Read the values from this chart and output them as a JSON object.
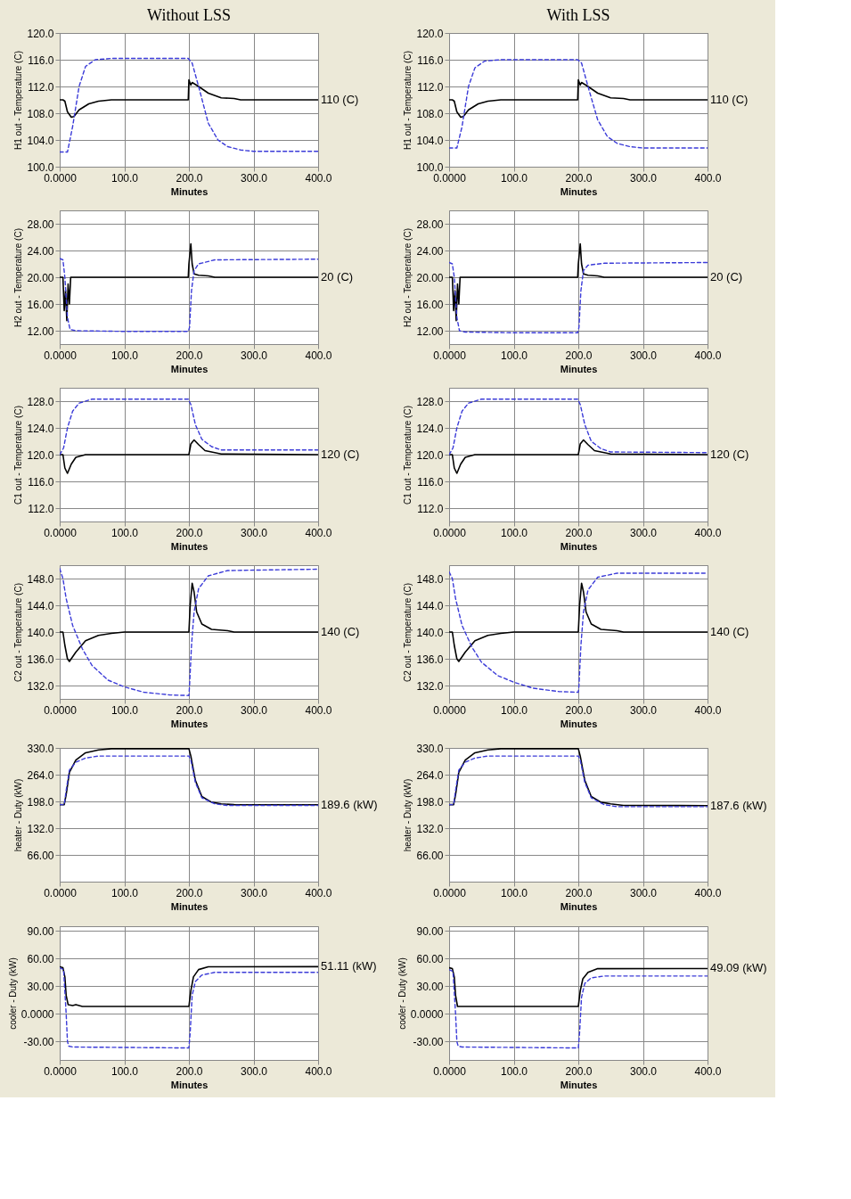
{
  "chart_data": [
    {
      "type": "line",
      "title": "Without LSS",
      "xlabel": "Minutes",
      "ylabel": "H1 out - Temperature (C)",
      "xlim": [
        0,
        400
      ],
      "ylim": [
        100,
        120
      ],
      "grid": true,
      "xticks": [
        {
          "value": 0,
          "label": "0.0000"
        },
        {
          "value": 100,
          "label": "100.0"
        },
        {
          "value": 200,
          "label": "200.0"
        },
        {
          "value": 300,
          "label": "300.0"
        },
        {
          "value": 400,
          "label": "400.0"
        }
      ],
      "yticks": [
        {
          "value": 100,
          "label": "100.0"
        },
        {
          "value": 104,
          "label": "104.0"
        },
        {
          "value": 108,
          "label": "108.0"
        },
        {
          "value": 112,
          "label": "112.0"
        },
        {
          "value": 116,
          "label": "116.0"
        },
        {
          "value": 120,
          "label": "120.0"
        }
      ],
      "annotations": [
        "110 (C)"
      ],
      "series": [
        {
          "color": "#000000",
          "line_style": "solid",
          "x": [
            0,
            5,
            8,
            12,
            18,
            22,
            30,
            45,
            60,
            80,
            199,
            200,
            203,
            205,
            215,
            230,
            250,
            270,
            280,
            400
          ],
          "values": [
            110,
            110,
            109.8,
            108.2,
            107.4,
            107.5,
            108.5,
            109.4,
            109.8,
            110,
            110,
            113,
            112.2,
            112.6,
            112,
            111,
            110.3,
            110.2,
            110,
            110
          ]
        },
        {
          "color": "#3b3bd8",
          "line_style": "dashed",
          "x": [
            0,
            12,
            20,
            30,
            40,
            55,
            80,
            199,
            205,
            215,
            230,
            245,
            260,
            280,
            300,
            400
          ],
          "values": [
            102.2,
            102.2,
            106,
            112,
            115,
            116,
            116.2,
            116.2,
            115.5,
            112,
            106.5,
            104,
            103,
            102.5,
            102.3,
            102.3
          ]
        }
      ]
    },
    {
      "type": "line",
      "title": "With LSS",
      "xlabel": "Minutes",
      "ylabel": "H1 out - Temperature (C)",
      "xlim": [
        0,
        400
      ],
      "ylim": [
        100,
        120
      ],
      "grid": true,
      "xticks": [
        {
          "value": 0,
          "label": "0.0000"
        },
        {
          "value": 100,
          "label": "100.0"
        },
        {
          "value": 200,
          "label": "200.0"
        },
        {
          "value": 300,
          "label": "300.0"
        },
        {
          "value": 400,
          "label": "400.0"
        }
      ],
      "yticks": [
        {
          "value": 100,
          "label": "100.0"
        },
        {
          "value": 104,
          "label": "104.0"
        },
        {
          "value": 108,
          "label": "108.0"
        },
        {
          "value": 112,
          "label": "112.0"
        },
        {
          "value": 116,
          "label": "116.0"
        },
        {
          "value": 120,
          "label": "120.0"
        }
      ],
      "annotations": [
        "110 (C)"
      ],
      "series": [
        {
          "color": "#000000",
          "line_style": "solid",
          "x": [
            0,
            5,
            8,
            12,
            18,
            22,
            30,
            45,
            60,
            80,
            199,
            200,
            203,
            205,
            215,
            230,
            250,
            270,
            280,
            400
          ],
          "values": [
            110,
            110,
            109.8,
            108.2,
            107.4,
            107.5,
            108.5,
            109.4,
            109.8,
            110,
            110,
            113,
            112.2,
            112.6,
            112,
            111,
            110.3,
            110.2,
            110,
            110
          ]
        },
        {
          "color": "#3b3bd8",
          "line_style": "dashed",
          "x": [
            0,
            12,
            20,
            30,
            40,
            55,
            80,
            199,
            205,
            215,
            230,
            245,
            260,
            280,
            300,
            400
          ],
          "values": [
            102.8,
            102.8,
            106,
            112,
            114.8,
            115.8,
            116,
            116,
            115.5,
            112,
            107,
            104.5,
            103.5,
            103,
            102.8,
            102.8
          ]
        }
      ]
    },
    {
      "type": "line",
      "xlabel": "Minutes",
      "ylabel": "H2 out - Temperature (C)",
      "xlim": [
        0,
        400
      ],
      "ylim": [
        10,
        30
      ],
      "grid": true,
      "xticks": [
        {
          "value": 0,
          "label": "0.0000"
        },
        {
          "value": 100,
          "label": "100.0"
        },
        {
          "value": 200,
          "label": "200.0"
        },
        {
          "value": 300,
          "label": "300.0"
        },
        {
          "value": 400,
          "label": "400.0"
        }
      ],
      "yticks": [
        {
          "value": 12,
          "label": "12.00"
        },
        {
          "value": 16,
          "label": "16.00"
        },
        {
          "value": 20,
          "label": "20.00"
        },
        {
          "value": 24,
          "label": "24.00"
        },
        {
          "value": 28,
          "label": "28.00"
        }
      ],
      "annotations": [
        "20 (C)"
      ],
      "series": [
        {
          "color": "#000000",
          "line_style": "solid",
          "x": [
            0,
            5,
            7,
            9,
            11,
            13,
            15,
            17,
            20,
            199,
            200,
            203,
            205,
            208,
            215,
            230,
            240,
            400
          ],
          "values": [
            20,
            20,
            15,
            18,
            13.5,
            19,
            16,
            20,
            20,
            20,
            22,
            25,
            22,
            20.5,
            20.3,
            20.2,
            20,
            20
          ]
        },
        {
          "color": "#3b3bd8",
          "line_style": "dashed",
          "x": [
            0,
            5,
            8,
            12,
            16,
            25,
            100,
            199,
            201,
            204,
            208,
            215,
            240,
            400
          ],
          "values": [
            22.8,
            22.6,
            20,
            14,
            12.2,
            12,
            11.9,
            11.9,
            12.5,
            18,
            21,
            22,
            22.6,
            22.7
          ]
        }
      ]
    },
    {
      "type": "line",
      "xlabel": "Minutes",
      "ylabel": "H2 out - Temperature (C)",
      "xlim": [
        0,
        400
      ],
      "ylim": [
        10,
        30
      ],
      "grid": true,
      "xticks": [
        {
          "value": 0,
          "label": "0.0000"
        },
        {
          "value": 100,
          "label": "100.0"
        },
        {
          "value": 200,
          "label": "200.0"
        },
        {
          "value": 300,
          "label": "300.0"
        },
        {
          "value": 400,
          "label": "400.0"
        }
      ],
      "yticks": [
        {
          "value": 12,
          "label": "12.00"
        },
        {
          "value": 16,
          "label": "16.00"
        },
        {
          "value": 20,
          "label": "20.00"
        },
        {
          "value": 24,
          "label": "24.00"
        },
        {
          "value": 28,
          "label": "28.00"
        }
      ],
      "annotations": [
        "20 (C)"
      ],
      "series": [
        {
          "color": "#000000",
          "line_style": "solid",
          "x": [
            0,
            5,
            7,
            9,
            11,
            13,
            15,
            17,
            20,
            199,
            200,
            203,
            205,
            208,
            215,
            230,
            240,
            400
          ],
          "values": [
            20,
            20,
            15,
            18,
            13.5,
            19,
            16,
            20,
            20,
            20,
            22,
            25,
            22,
            20.5,
            20.3,
            20.2,
            20,
            20
          ]
        },
        {
          "color": "#3b3bd8",
          "line_style": "dashed",
          "x": [
            0,
            5,
            8,
            12,
            16,
            25,
            100,
            199,
            201,
            204,
            208,
            215,
            240,
            400
          ],
          "values": [
            22.2,
            22,
            20,
            14,
            12,
            11.8,
            11.7,
            11.7,
            12.5,
            18,
            21,
            21.8,
            22.1,
            22.2
          ]
        }
      ]
    },
    {
      "type": "line",
      "xlabel": "Minutes",
      "ylabel": "C1 out - Temperature (C)",
      "xlim": [
        0,
        400
      ],
      "ylim": [
        110,
        130
      ],
      "grid": true,
      "xticks": [
        {
          "value": 0,
          "label": "0.0000"
        },
        {
          "value": 100,
          "label": "100.0"
        },
        {
          "value": 200,
          "label": "200.0"
        },
        {
          "value": 300,
          "label": "300.0"
        },
        {
          "value": 400,
          "label": "400.0"
        }
      ],
      "yticks": [
        {
          "value": 112,
          "label": "112.0"
        },
        {
          "value": 116,
          "label": "116.0"
        },
        {
          "value": 120,
          "label": "120.0"
        },
        {
          "value": 124,
          "label": "124.0"
        },
        {
          "value": 128,
          "label": "128.0"
        }
      ],
      "annotations": [
        "120 (C)"
      ],
      "series": [
        {
          "color": "#000000",
          "line_style": "solid",
          "x": [
            0,
            5,
            8,
            12,
            18,
            25,
            40,
            200,
            203,
            208,
            215,
            225,
            240,
            250,
            400
          ],
          "values": [
            120,
            120,
            118,
            117.2,
            118.6,
            119.6,
            120,
            120,
            121.6,
            122.2,
            121.5,
            120.6,
            120.3,
            120.1,
            120
          ]
        },
        {
          "color": "#3b3bd8",
          "line_style": "dashed",
          "x": [
            0,
            6,
            12,
            20,
            30,
            50,
            199,
            203,
            210,
            220,
            235,
            250,
            400
          ],
          "values": [
            120,
            121,
            124,
            126.5,
            127.7,
            128.3,
            128.3,
            127.5,
            124.5,
            122.3,
            121.2,
            120.7,
            120.7
          ]
        }
      ]
    },
    {
      "type": "line",
      "xlabel": "Minutes",
      "ylabel": "C1 out - Temperature (C)",
      "xlim": [
        0,
        400
      ],
      "ylim": [
        110,
        130
      ],
      "grid": true,
      "xticks": [
        {
          "value": 0,
          "label": "0.0000"
        },
        {
          "value": 100,
          "label": "100.0"
        },
        {
          "value": 200,
          "label": "200.0"
        },
        {
          "value": 300,
          "label": "300.0"
        },
        {
          "value": 400,
          "label": "400.0"
        }
      ],
      "yticks": [
        {
          "value": 112,
          "label": "112.0"
        },
        {
          "value": 116,
          "label": "116.0"
        },
        {
          "value": 120,
          "label": "120.0"
        },
        {
          "value": 124,
          "label": "124.0"
        },
        {
          "value": 128,
          "label": "128.0"
        }
      ],
      "annotations": [
        "120 (C)"
      ],
      "series": [
        {
          "color": "#000000",
          "line_style": "solid",
          "x": [
            0,
            5,
            8,
            12,
            18,
            25,
            40,
            200,
            203,
            208,
            215,
            225,
            240,
            250,
            400
          ],
          "values": [
            120,
            120,
            118,
            117.2,
            118.6,
            119.6,
            120,
            120,
            121.6,
            122.2,
            121.5,
            120.6,
            120.3,
            120.1,
            120
          ]
        },
        {
          "color": "#3b3bd8",
          "line_style": "dashed",
          "x": [
            0,
            6,
            12,
            20,
            30,
            50,
            199,
            203,
            210,
            220,
            235,
            250,
            400
          ],
          "values": [
            120,
            121,
            124,
            126.5,
            127.7,
            128.3,
            128.3,
            127.5,
            124.5,
            122,
            120.9,
            120.4,
            120.3
          ]
        }
      ]
    },
    {
      "type": "line",
      "xlabel": "Minutes",
      "ylabel": "C2 out - Temperature (C)",
      "xlim": [
        0,
        400
      ],
      "ylim": [
        130,
        150
      ],
      "grid": true,
      "xticks": [
        {
          "value": 0,
          "label": "0.0000"
        },
        {
          "value": 100,
          "label": "100.0"
        },
        {
          "value": 200,
          "label": "200.0"
        },
        {
          "value": 300,
          "label": "300.0"
        },
        {
          "value": 400,
          "label": "400.0"
        }
      ],
      "yticks": [
        {
          "value": 132,
          "label": "132.0"
        },
        {
          "value": 136,
          "label": "136.0"
        },
        {
          "value": 140,
          "label": "140.0"
        },
        {
          "value": 144,
          "label": "144.0"
        },
        {
          "value": 148,
          "label": "148.0"
        }
      ],
      "annotations": [
        "140 (C)"
      ],
      "series": [
        {
          "color": "#000000",
          "line_style": "solid",
          "x": [
            0,
            5,
            8,
            12,
            15,
            25,
            40,
            60,
            80,
            100,
            200,
            202,
            205,
            208,
            212,
            220,
            235,
            260,
            270,
            400
          ],
          "values": [
            140,
            140,
            138,
            136,
            135.6,
            137,
            138.7,
            139.5,
            139.8,
            140,
            140,
            144,
            147.3,
            146,
            143,
            141.2,
            140.4,
            140.2,
            140,
            140
          ]
        },
        {
          "color": "#3b3bd8",
          "line_style": "dashed",
          "x": [
            0,
            5,
            10,
            20,
            35,
            50,
            75,
            100,
            130,
            170,
            200,
            201,
            204,
            208,
            215,
            230,
            260,
            400
          ],
          "values": [
            149.5,
            148,
            145,
            141,
            137.5,
            135,
            132.8,
            131.8,
            131,
            130.6,
            130.5,
            132,
            138,
            143,
            146.5,
            148.4,
            149.2,
            149.4
          ]
        }
      ]
    },
    {
      "type": "line",
      "xlabel": "Minutes",
      "ylabel": "C2 out - Temperature (C)",
      "xlim": [
        0,
        400
      ],
      "ylim": [
        130,
        150
      ],
      "grid": true,
      "xticks": [
        {
          "value": 0,
          "label": "0.0000"
        },
        {
          "value": 100,
          "label": "100.0"
        },
        {
          "value": 200,
          "label": "200.0"
        },
        {
          "value": 300,
          "label": "300.0"
        },
        {
          "value": 400,
          "label": "400.0"
        }
      ],
      "yticks": [
        {
          "value": 132,
          "label": "132.0"
        },
        {
          "value": 136,
          "label": "136.0"
        },
        {
          "value": 140,
          "label": "140.0"
        },
        {
          "value": 144,
          "label": "144.0"
        },
        {
          "value": 148,
          "label": "148.0"
        }
      ],
      "annotations": [
        "140 (C)"
      ],
      "series": [
        {
          "color": "#000000",
          "line_style": "solid",
          "x": [
            0,
            5,
            8,
            12,
            15,
            25,
            40,
            60,
            80,
            100,
            200,
            202,
            205,
            208,
            212,
            220,
            235,
            260,
            270,
            400
          ],
          "values": [
            140,
            140,
            138,
            136,
            135.6,
            137,
            138.7,
            139.5,
            139.8,
            140,
            140,
            144,
            147.3,
            146,
            143,
            141.2,
            140.4,
            140.2,
            140,
            140
          ]
        },
        {
          "color": "#3b3bd8",
          "line_style": "dashed",
          "x": [
            0,
            5,
            10,
            20,
            35,
            50,
            75,
            100,
            130,
            170,
            200,
            201,
            204,
            208,
            215,
            230,
            260,
            400
          ],
          "values": [
            149,
            148,
            145,
            141,
            137.8,
            135.5,
            133.5,
            132.5,
            131.6,
            131.1,
            131,
            132,
            138,
            143,
            146.3,
            148.2,
            148.8,
            148.8
          ]
        }
      ]
    },
    {
      "type": "line",
      "xlabel": "Minutes",
      "ylabel": "heater - Duty (kW)",
      "xlim": [
        0,
        400
      ],
      "ylim": [
        0,
        330
      ],
      "grid": true,
      "xticks": [
        {
          "value": 0,
          "label": "0.0000"
        },
        {
          "value": 100,
          "label": "100.0"
        },
        {
          "value": 200,
          "label": "200.0"
        },
        {
          "value": 300,
          "label": "300.0"
        },
        {
          "value": 400,
          "label": "400.0"
        }
      ],
      "yticks": [
        {
          "value": 66,
          "label": "66.00"
        },
        {
          "value": 132,
          "label": "132.0"
        },
        {
          "value": 198,
          "label": "198.0"
        },
        {
          "value": 264,
          "label": "264.0"
        },
        {
          "value": 330,
          "label": "330.0"
        }
      ],
      "annotations": [
        "189.6 (kW)"
      ],
      "series": [
        {
          "color": "#000000",
          "line_style": "solid",
          "x": [
            0,
            7,
            10,
            15,
            25,
            40,
            60,
            80,
            200,
            203,
            210,
            220,
            235,
            250,
            270,
            400
          ],
          "values": [
            190,
            190,
            215,
            270,
            300,
            318,
            325,
            328,
            328,
            310,
            250,
            210,
            196,
            192,
            190,
            189.6
          ]
        },
        {
          "color": "#3b3bd8",
          "line_style": "dashed",
          "x": [
            0,
            7,
            10,
            15,
            25,
            40,
            60,
            200,
            203,
            210,
            220,
            240,
            260,
            400
          ],
          "values": [
            190,
            190,
            225,
            275,
            295,
            305,
            310,
            310,
            300,
            245,
            207,
            192,
            188,
            188
          ]
        }
      ]
    },
    {
      "type": "line",
      "xlabel": "Minutes",
      "ylabel": "heater - Duty (kW)",
      "xlim": [
        0,
        400
      ],
      "ylim": [
        0,
        330
      ],
      "grid": true,
      "xticks": [
        {
          "value": 0,
          "label": "0.0000"
        },
        {
          "value": 100,
          "label": "100.0"
        },
        {
          "value": 200,
          "label": "200.0"
        },
        {
          "value": 300,
          "label": "300.0"
        },
        {
          "value": 400,
          "label": "400.0"
        }
      ],
      "yticks": [
        {
          "value": 66,
          "label": "66.00"
        },
        {
          "value": 132,
          "label": "132.0"
        },
        {
          "value": 198,
          "label": "198.0"
        },
        {
          "value": 264,
          "label": "264.0"
        },
        {
          "value": 330,
          "label": "330.0"
        }
      ],
      "annotations": [
        "187.6 (kW)"
      ],
      "series": [
        {
          "color": "#000000",
          "line_style": "solid",
          "x": [
            0,
            7,
            10,
            15,
            25,
            40,
            60,
            80,
            200,
            203,
            210,
            220,
            235,
            250,
            270,
            400
          ],
          "values": [
            190,
            190,
            215,
            270,
            300,
            318,
            325,
            328,
            328,
            310,
            250,
            210,
            196,
            192,
            188,
            187.6
          ]
        },
        {
          "color": "#3b3bd8",
          "line_style": "dashed",
          "x": [
            0,
            7,
            10,
            15,
            25,
            40,
            60,
            200,
            203,
            210,
            220,
            240,
            260,
            400
          ],
          "values": [
            190,
            190,
            225,
            275,
            295,
            305,
            310,
            310,
            300,
            245,
            207,
            190,
            185,
            185
          ]
        }
      ]
    },
    {
      "type": "line",
      "xlabel": "Minutes",
      "ylabel": "cooler - Duty (kW)",
      "xlim": [
        0,
        400
      ],
      "ylim": [
        -50,
        95
      ],
      "grid": true,
      "xticks": [
        {
          "value": 0,
          "label": "0.0000"
        },
        {
          "value": 100,
          "label": "100.0"
        },
        {
          "value": 200,
          "label": "200.0"
        },
        {
          "value": 300,
          "label": "300.0"
        },
        {
          "value": 400,
          "label": "400.0"
        }
      ],
      "yticks": [
        {
          "value": -30,
          "label": "-30.00"
        },
        {
          "value": 0,
          "label": "0.0000"
        },
        {
          "value": 30,
          "label": "30.00"
        },
        {
          "value": 60,
          "label": "60.00"
        },
        {
          "value": 90,
          "label": "90.00"
        }
      ],
      "annotations": [
        "51.11 (kW)"
      ],
      "series": [
        {
          "color": "#000000",
          "line_style": "solid",
          "x": [
            0,
            5,
            8,
            10,
            13,
            20,
            25,
            35,
            200,
            203,
            207,
            215,
            230,
            400
          ],
          "values": [
            51,
            50,
            40,
            20,
            10,
            9,
            10,
            8,
            8,
            25,
            40,
            48,
            51,
            51.11
          ]
        },
        {
          "color": "#3b3bd8",
          "line_style": "dashed",
          "x": [
            0,
            6,
            10,
            12,
            14,
            20,
            200,
            202,
            205,
            210,
            220,
            240,
            400
          ],
          "values": [
            50,
            48,
            0,
            -30,
            -35,
            -36,
            -37,
            -20,
            20,
            35,
            42,
            45,
            45
          ]
        }
      ]
    },
    {
      "type": "line",
      "xlabel": "Minutes",
      "ylabel": "cooler - Duty (kW)",
      "xlim": [
        0,
        400
      ],
      "ylim": [
        -50,
        95
      ],
      "grid": true,
      "xticks": [
        {
          "value": 0,
          "label": "0.0000"
        },
        {
          "value": 100,
          "label": "100.0"
        },
        {
          "value": 200,
          "label": "200.0"
        },
        {
          "value": 300,
          "label": "300.0"
        },
        {
          "value": 400,
          "label": "400.0"
        }
      ],
      "yticks": [
        {
          "value": -30,
          "label": "-30.00"
        },
        {
          "value": 0,
          "label": "0.0000"
        },
        {
          "value": 30,
          "label": "30.00"
        },
        {
          "value": 60,
          "label": "60.00"
        },
        {
          "value": 90,
          "label": "90.00"
        }
      ],
      "annotations": [
        "49.09 (kW)"
      ],
      "series": [
        {
          "color": "#000000",
          "line_style": "solid",
          "x": [
            0,
            5,
            8,
            10,
            13,
            20,
            200,
            203,
            207,
            215,
            230,
            400
          ],
          "values": [
            50,
            49,
            40,
            20,
            8,
            8,
            8,
            25,
            38,
            45,
            49,
            49.09
          ]
        },
        {
          "color": "#3b3bd8",
          "line_style": "dashed",
          "x": [
            0,
            6,
            10,
            12,
            14,
            20,
            200,
            202,
            205,
            210,
            220,
            240,
            400
          ],
          "values": [
            48,
            46,
            0,
            -30,
            -35,
            -36,
            -37,
            -20,
            18,
            33,
            39,
            41,
            41
          ]
        }
      ]
    }
  ]
}
